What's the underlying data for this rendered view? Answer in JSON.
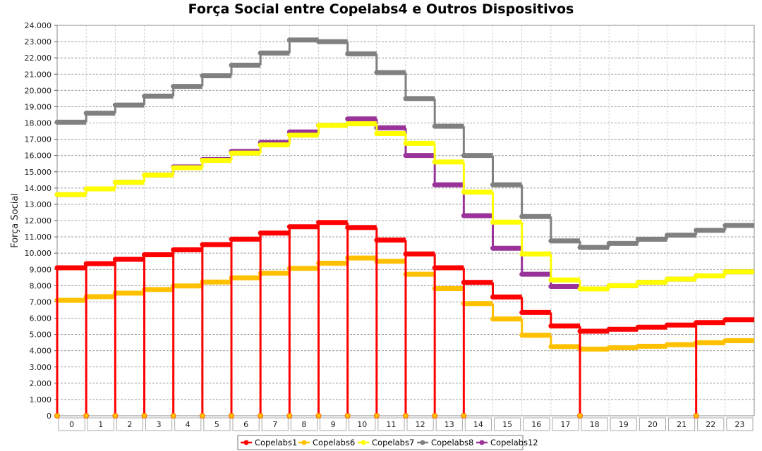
{
  "chart_data": {
    "type": "line",
    "title": "Força Social entre Copelabs4 e Outros Dispositivos",
    "xlabel": "",
    "ylabel": "Força Social",
    "categories": [
      "0",
      "1",
      "2",
      "3",
      "4",
      "5",
      "6",
      "7",
      "8",
      "9",
      "10",
      "11",
      "12",
      "13",
      "14",
      "15",
      "16",
      "17",
      "18",
      "19",
      "20",
      "21",
      "22",
      "23"
    ],
    "y_ticks": [
      "0",
      "1.000",
      "2.000",
      "3.000",
      "4.000",
      "5.000",
      "6.000",
      "7.000",
      "8.000",
      "9.000",
      "10.000",
      "11.000",
      "12.000",
      "13.000",
      "14.000",
      "15.000",
      "16.000",
      "17.000",
      "18.000",
      "19.000",
      "20.000",
      "21.000",
      "22.000",
      "23.000",
      "24.000"
    ],
    "ylim": [
      0,
      24000
    ],
    "grid": true,
    "legend_position": "bottom",
    "series": [
      {
        "name": "Copelabs1",
        "color": "#ff0000",
        "values": [
          9100,
          9350,
          9620,
          9900,
          10200,
          10520,
          10860,
          11230,
          11620,
          11880,
          11570,
          10800,
          9950,
          9100,
          8200,
          7300,
          6350,
          5520,
          5200,
          5320,
          5450,
          5580,
          5730,
          5900
        ],
        "drops_to_zero_at": [
          0,
          1,
          2,
          3,
          4,
          5,
          6,
          7,
          8,
          9,
          10,
          11,
          12,
          13,
          14,
          18,
          22
        ]
      },
      {
        "name": "Copelabs6",
        "color": "#ffc000",
        "values": [
          7100,
          7320,
          7540,
          7760,
          7980,
          8220,
          8480,
          8760,
          9060,
          9380,
          9700,
          9500,
          8700,
          7820,
          6900,
          5950,
          4950,
          4250,
          4100,
          4180,
          4270,
          4370,
          4490,
          4620
        ]
      },
      {
        "name": "Copelabs7",
        "color": "#ffff00",
        "values": [
          13600,
          13950,
          14350,
          14800,
          15250,
          15700,
          16150,
          16650,
          17250,
          17850,
          17950,
          17350,
          16750,
          15600,
          13750,
          11900,
          9950,
          8350,
          7800,
          8000,
          8200,
          8400,
          8600,
          8850
        ]
      },
      {
        "name": "Copelabs8",
        "color": "#808080",
        "values": [
          18050,
          18600,
          19100,
          19650,
          20250,
          20900,
          21550,
          22300,
          23100,
          23000,
          22250,
          21100,
          19500,
          17800,
          16000,
          14200,
          12250,
          10750,
          10350,
          10600,
          10850,
          11100,
          11400,
          11700
        ]
      },
      {
        "name": "Copelabs12",
        "color": "#993399",
        "values": [
          13600,
          13950,
          14350,
          14800,
          15300,
          15750,
          16250,
          16800,
          17450,
          17850,
          18250,
          17700,
          16000,
          14200,
          12300,
          10300,
          8700,
          7950,
          7800,
          8000,
          8200,
          8400,
          8600,
          8850
        ]
      }
    ]
  }
}
